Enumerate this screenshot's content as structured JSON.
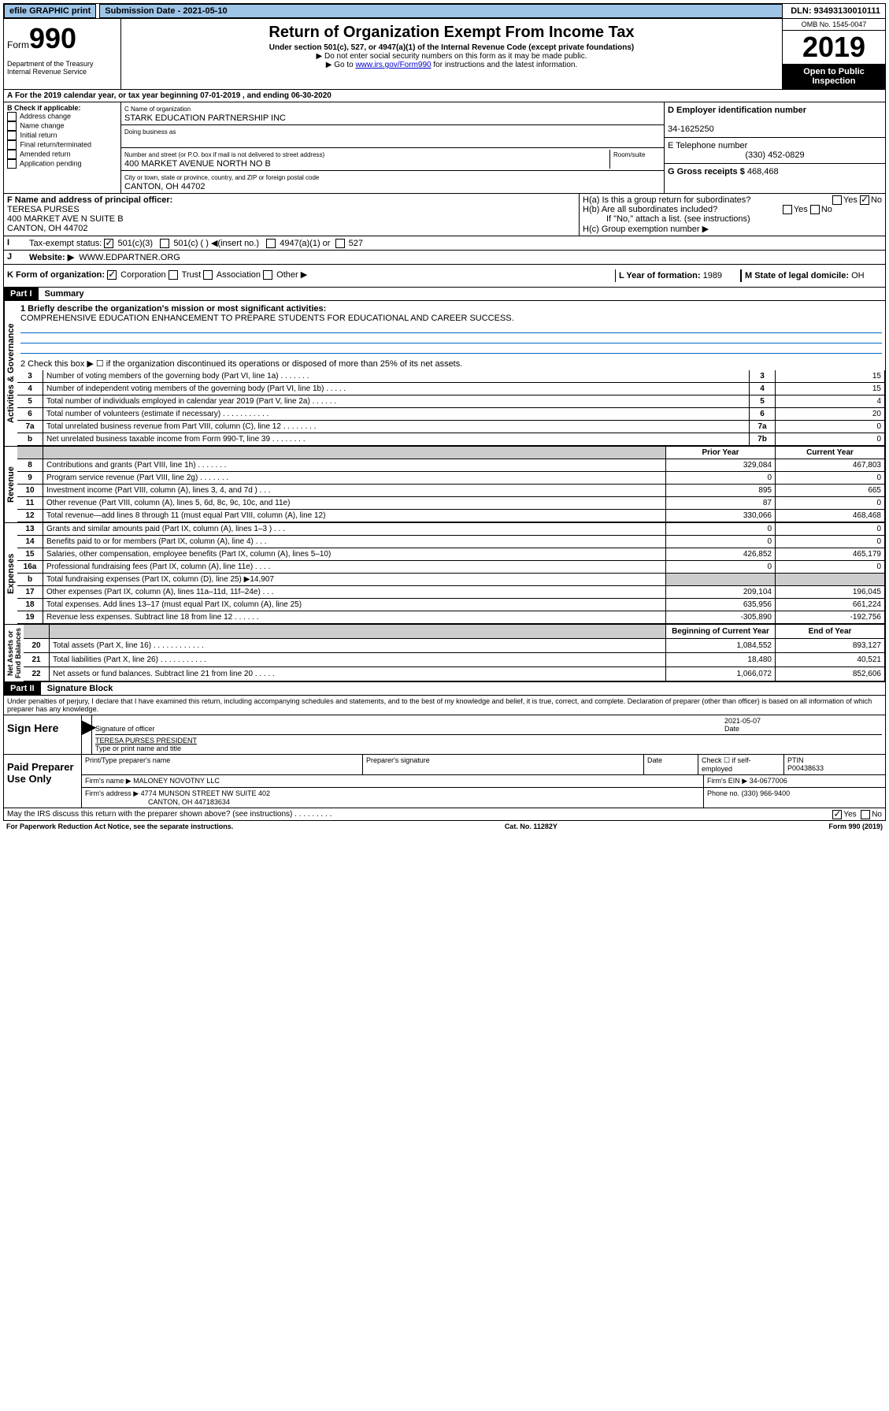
{
  "topbar": {
    "efile": "efile GRAPHIC print",
    "submission": "Submission Date - 2021-05-10",
    "dln": "DLN: 93493130010111"
  },
  "header": {
    "form": "990",
    "form_word": "Form",
    "dept": "Department of the Treasury\nInternal Revenue Service",
    "title": "Return of Organization Exempt From Income Tax",
    "sub1": "Under section 501(c), 527, or 4947(a)(1) of the Internal Revenue Code (except private foundations)",
    "sub2": "▶ Do not enter social security numbers on this form as it may be made public.",
    "sub3": "▶ Go to www.irs.gov/Form990 for instructions and the latest information.",
    "omb": "OMB No. 1545-0047",
    "year": "2019",
    "open": "Open to Public Inspection"
  },
  "period": {
    "text": "For the 2019 calendar year, or tax year beginning 07-01-2019   , and ending 06-30-2020"
  },
  "checkboxes": {
    "header": "B Check if applicable:",
    "items": [
      "Address change",
      "Name change",
      "Initial return",
      "Final return/terminated",
      "Amended return",
      "Application pending"
    ]
  },
  "org": {
    "name_label": "C Name of organization",
    "name": "STARK EDUCATION PARTNERSHIP INC",
    "dba_label": "Doing business as",
    "addr_label": "Number and street (or P.O. box if mail is not delivered to street address)",
    "room_label": "Room/suite",
    "addr": "400 MARKET AVENUE NORTH NO B",
    "city_label": "City or town, state or province, country, and ZIP or foreign postal code",
    "city": "CANTON, OH  44702"
  },
  "ein": {
    "label": "D Employer identification number",
    "value": "34-1625250",
    "phone_label": "E Telephone number",
    "phone": "(330) 452-0829",
    "gross_label": "G Gross receipts $",
    "gross": "468,468"
  },
  "officer": {
    "label": "F Name and address of principal officer:",
    "name": "TERESA PURSES",
    "addr": "400 MARKET AVE N SUITE B",
    "city": "CANTON, OH  44702"
  },
  "h": {
    "a": "H(a)  Is this a group return for subordinates?",
    "b": "H(b)  Are all subordinates included?",
    "note": "If \"No,\" attach a list. (see instructions)",
    "c": "H(c)  Group exemption number ▶"
  },
  "tax_status": {
    "label": "Tax-exempt status:",
    "opts": [
      "501(c)(3)",
      "501(c) (  ) ◀(insert no.)",
      "4947(a)(1) or",
      "527"
    ]
  },
  "website": {
    "label": "Website: ▶",
    "value": "WWW.EDPARTNER.ORG"
  },
  "k": {
    "label": "K Form of organization:",
    "opts": [
      "Corporation",
      "Trust",
      "Association",
      "Other ▶"
    ],
    "year_label": "L Year of formation:",
    "year": "1989",
    "state_label": "M State of legal domicile:",
    "state": "OH"
  },
  "part1": {
    "header": "Part I",
    "title": "Summary"
  },
  "summary": {
    "q1": "1  Briefly describe the organization's mission or most significant activities:",
    "mission": "COMPREHENSIVE EDUCATION ENHANCEMENT TO PREPARE STUDENTS FOR EDUCATIONAL AND CAREER SUCCESS.",
    "q2": "2  Check this box ▶ ☐  if the organization discontinued its operations or disposed of more than 25% of its net assets.",
    "lines": [
      {
        "n": "3",
        "lbl": "Number of voting members of the governing body (Part VI, line 1a)   .    .    .    .    .    .    .",
        "ln": "3",
        "val": "15"
      },
      {
        "n": "4",
        "lbl": "Number of independent voting members of the governing body (Part VI, line 1b)   .    .    .    .    .",
        "ln": "4",
        "val": "15"
      },
      {
        "n": "5",
        "lbl": "Total number of individuals employed in calendar year 2019 (Part V, line 2a)  .    .    .    .    .    .",
        "ln": "5",
        "val": "4"
      },
      {
        "n": "6",
        "lbl": "Total number of volunteers (estimate if necessary)   .    .    .    .    .    .    .    .    .    .    .",
        "ln": "6",
        "val": "20"
      },
      {
        "n": "7a",
        "lbl": "Total unrelated business revenue from Part VIII, column (C), line 12  .    .    .    .    .    .    .    .",
        "ln": "7a",
        "val": "0"
      },
      {
        "n": "b",
        "lbl": "Net unrelated business taxable income from Form 990-T, line 39   .    .    .    .    .    .    .    .",
        "ln": "7b",
        "val": "0"
      }
    ]
  },
  "revenue": {
    "hdr_prior": "Prior Year",
    "hdr_curr": "Current Year",
    "lines": [
      {
        "n": "8",
        "lbl": "Contributions and grants (Part VIII, line 1h)   .    .    .    .    .    .    .",
        "p": "329,084",
        "c": "467,803"
      },
      {
        "n": "9",
        "lbl": "Program service revenue (Part VIII, line 2g)   .    .    .    .    .    .    .",
        "p": "0",
        "c": "0"
      },
      {
        "n": "10",
        "lbl": "Investment income (Part VIII, column (A), lines 3, 4, and 7d )   .    .    .",
        "p": "895",
        "c": "665"
      },
      {
        "n": "11",
        "lbl": "Other revenue (Part VIII, column (A), lines 5, 6d, 8c, 9c, 10c, and 11e)",
        "p": "87",
        "c": "0"
      },
      {
        "n": "12",
        "lbl": "Total revenue—add lines 8 through 11 (must equal Part VIII, column (A), line 12)",
        "p": "330,066",
        "c": "468,468"
      }
    ]
  },
  "expenses": {
    "lines": [
      {
        "n": "13",
        "lbl": "Grants and similar amounts paid (Part IX, column (A), lines 1–3 )   .    .    .",
        "p": "0",
        "c": "0"
      },
      {
        "n": "14",
        "lbl": "Benefits paid to or for members (Part IX, column (A), line 4)   .    .    .",
        "p": "0",
        "c": "0"
      },
      {
        "n": "15",
        "lbl": "Salaries, other compensation, employee benefits (Part IX, column (A), lines 5–10)",
        "p": "426,852",
        "c": "465,179"
      },
      {
        "n": "16a",
        "lbl": "Professional fundraising fees (Part IX, column (A), line 11e)    .    .    .    .",
        "p": "0",
        "c": "0"
      },
      {
        "n": "b",
        "lbl": "Total fundraising expenses (Part IX, column (D), line 25) ▶14,907",
        "p": "",
        "c": "",
        "grey": true
      },
      {
        "n": "17",
        "lbl": "Other expenses (Part IX, column (A), lines 11a–11d, 11f–24e)   .    .    .",
        "p": "209,104",
        "c": "196,045"
      },
      {
        "n": "18",
        "lbl": "Total expenses. Add lines 13–17 (must equal Part IX, column (A), line 25)",
        "p": "635,956",
        "c": "661,224"
      },
      {
        "n": "19",
        "lbl": "Revenue less expenses. Subtract line 18 from line 12   .    .    .    .    .    .",
        "p": "-305,890",
        "c": "-192,756"
      }
    ]
  },
  "netassets": {
    "hdr_prior": "Beginning of Current Year",
    "hdr_curr": "End of Year",
    "lines": [
      {
        "n": "20",
        "lbl": "Total assets (Part X, line 16)   .    .    .    .    .    .    .    .    .    .    .    .",
        "p": "1,084,552",
        "c": "893,127"
      },
      {
        "n": "21",
        "lbl": "Total liabilities (Part X, line 26)   .    .    .    .    .    .    .    .    .    .    .",
        "p": "18,480",
        "c": "40,521"
      },
      {
        "n": "22",
        "lbl": "Net assets or fund balances. Subtract line 21 from line 20  .    .    .    .    .",
        "p": "1,066,072",
        "c": "852,606"
      }
    ]
  },
  "part2": {
    "header": "Part II",
    "title": "Signature Block",
    "perjury": "Under penalties of perjury, I declare that I have examined this return, including accompanying schedules and statements, and to the best of my knowledge and belief, it is true, correct, and complete. Declaration of preparer (other than officer) is based on all information of which preparer has any knowledge."
  },
  "sign": {
    "label": "Sign Here",
    "date": "2021-05-07",
    "date_label": "Date",
    "sig_label": "Signature of officer",
    "name": "TERESA PURSES PRESIDENT",
    "name_label": "Type or print name and title"
  },
  "paid": {
    "label": "Paid Preparer Use Only",
    "col1": "Print/Type preparer's name",
    "col2": "Preparer's signature",
    "col3": "Date",
    "check": "Check ☐ if self-employed",
    "ptin_label": "PTIN",
    "ptin": "P00438633",
    "firm_label": "Firm's name    ▶",
    "firm": "MALONEY NOVOTNY LLC",
    "ein_label": "Firm's EIN ▶",
    "ein": "34-0677006",
    "addr_label": "Firm's address ▶",
    "addr": "4774 MUNSON STREET NW SUITE 402",
    "city": "CANTON, OH  447183634",
    "phone_label": "Phone no.",
    "phone": "(330) 966-9400"
  },
  "discuss": "May the IRS discuss this return with the preparer shown above? (see instructions)    .    .    .    .    .    .    .    .    .",
  "footer": {
    "left": "For Paperwork Reduction Act Notice, see the separate instructions.",
    "mid": "Cat. No. 11282Y",
    "right": "Form 990 (2019)"
  }
}
